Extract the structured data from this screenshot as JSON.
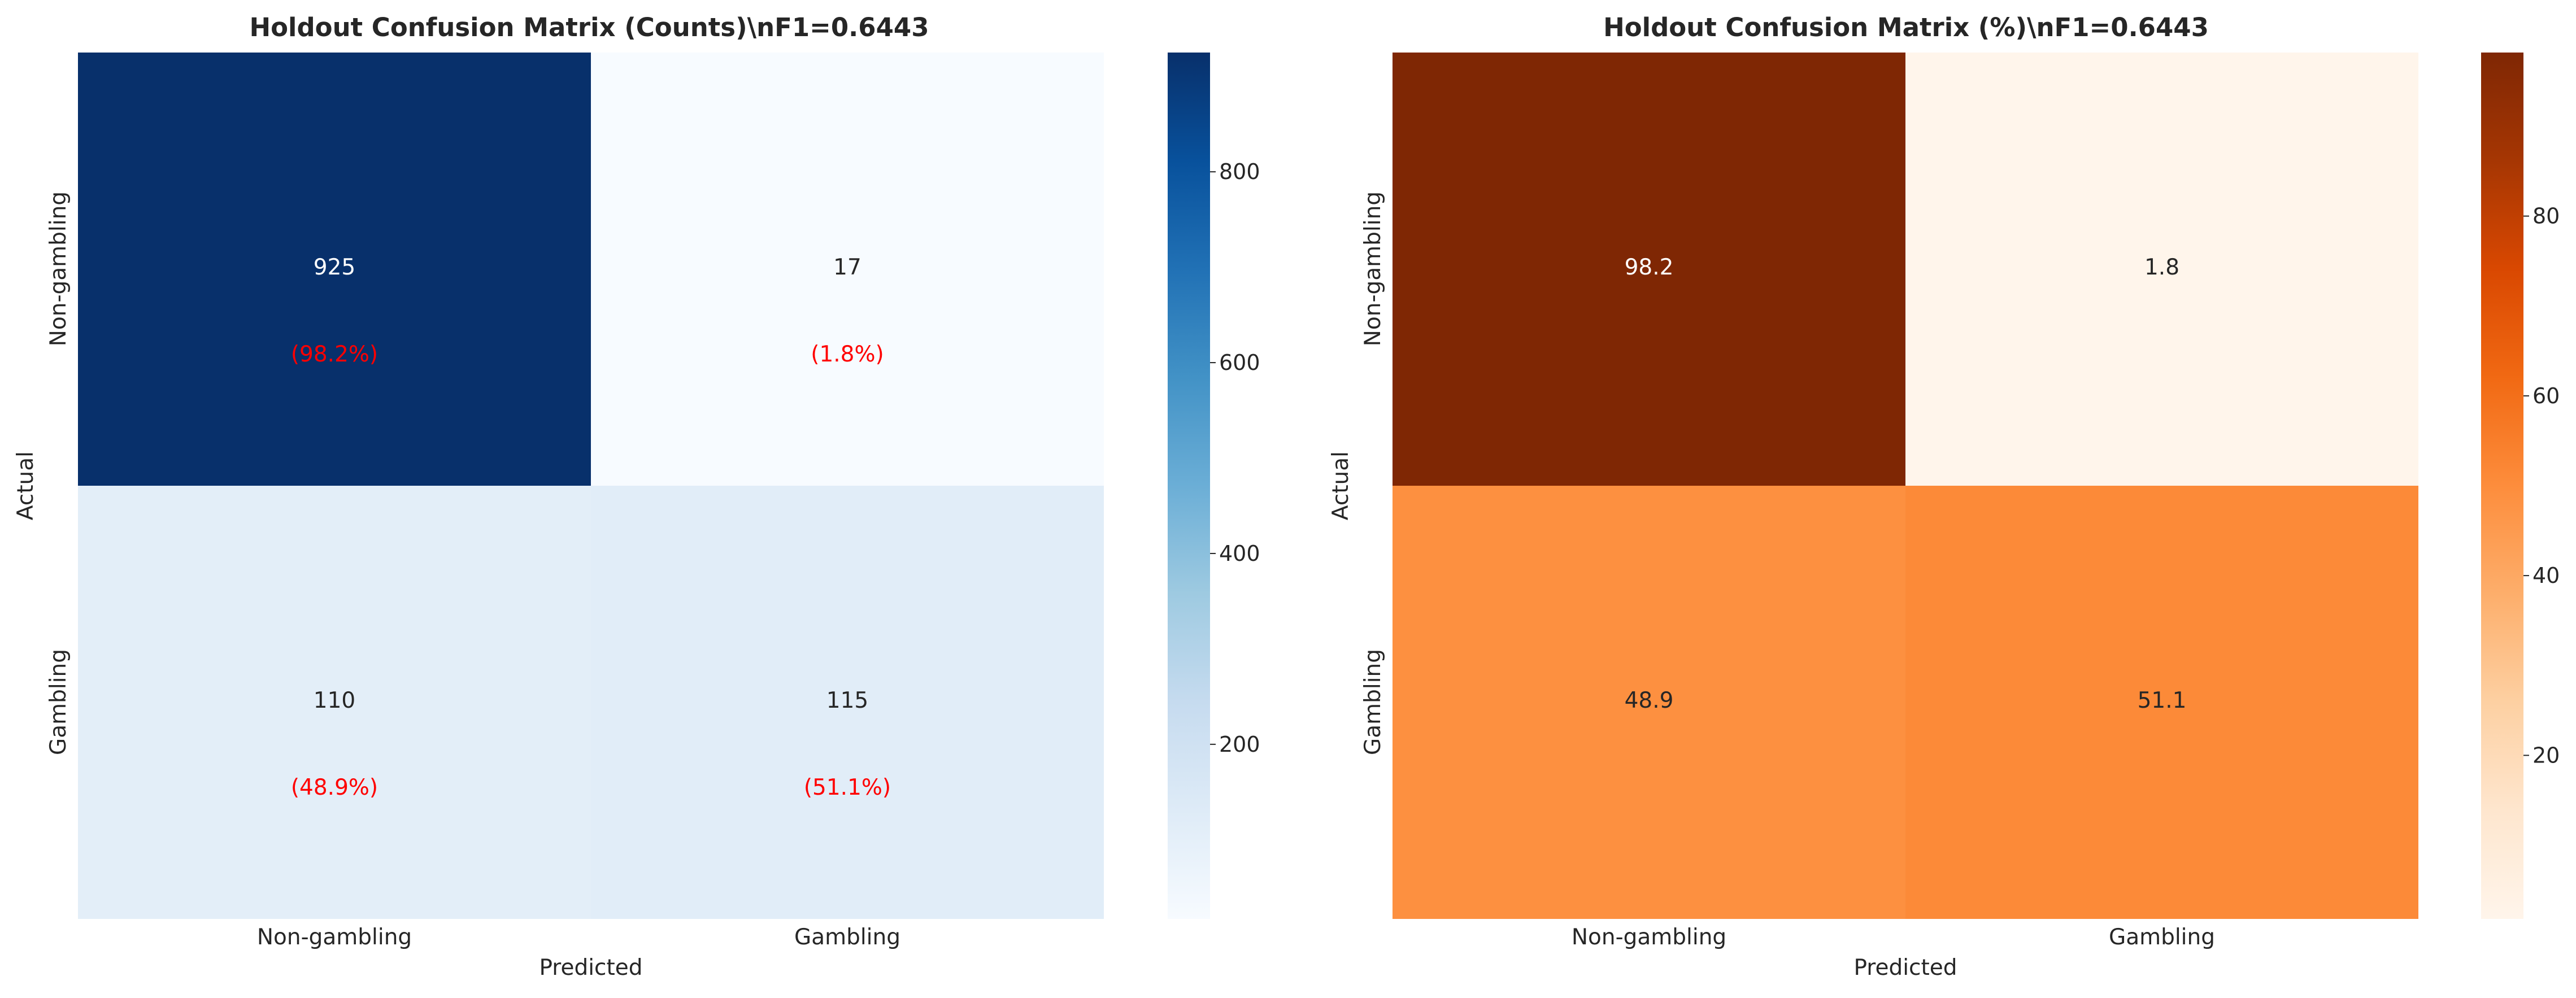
{
  "chart_data": [
    {
      "type": "heatmap",
      "title": "Holdout Confusion Matrix (Counts)\\nF1=0.6443",
      "xlabel": "Predicted",
      "ylabel": "Actual",
      "x_categories": [
        "Non-gambling",
        "Gambling"
      ],
      "y_categories": [
        "Non-gambling",
        "Gambling"
      ],
      "values": [
        [
          925,
          17
        ],
        [
          110,
          115
        ]
      ],
      "value_labels": [
        [
          "925",
          "17"
        ],
        [
          "110",
          "115"
        ]
      ],
      "row_percent_labels": [
        [
          "(98.2%)",
          "(1.8%)"
        ],
        [
          "(48.9%)",
          "(51.1%)"
        ]
      ],
      "row_percent_color": "#ff0000",
      "colormap": "Blues",
      "color_range": [
        17,
        925
      ],
      "colorbar_ticks": [
        "200",
        "400",
        "600",
        "800"
      ],
      "colorbar_tick_values": [
        200,
        400,
        600,
        800
      ]
    },
    {
      "type": "heatmap",
      "title": "Holdout Confusion Matrix (%)\\nF1=0.6443",
      "xlabel": "Predicted",
      "ylabel": "Actual",
      "x_categories": [
        "Non-gambling",
        "Gambling"
      ],
      "y_categories": [
        "Non-gambling",
        "Gambling"
      ],
      "values": [
        [
          98.2,
          1.8
        ],
        [
          48.9,
          51.1
        ]
      ],
      "value_labels": [
        [
          "98.2",
          "1.8"
        ],
        [
          "48.9",
          "51.1"
        ]
      ],
      "colormap": "Oranges",
      "color_range": [
        1.8,
        98.2
      ],
      "colorbar_ticks": [
        "20",
        "40",
        "60",
        "80"
      ],
      "colorbar_tick_values": [
        20,
        40,
        60,
        80
      ]
    }
  ]
}
